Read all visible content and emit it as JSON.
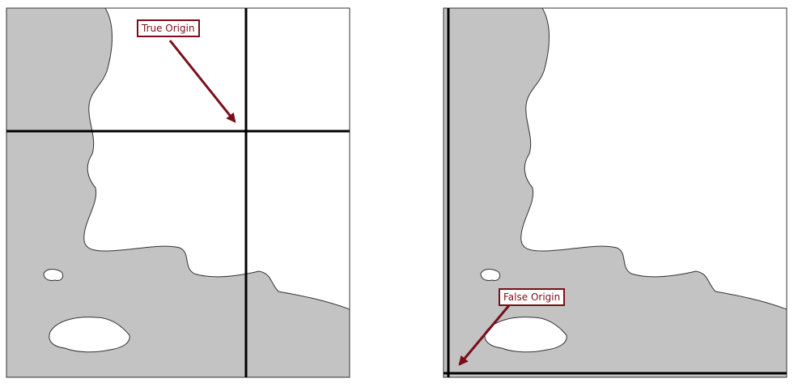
{
  "diagram": {
    "left_panel": {
      "callout_text": "True Origin"
    },
    "right_panel": {
      "callout_text": "False Origin"
    },
    "colors": {
      "land": "#c3c3c3",
      "water": "#ffffff",
      "frame": "#333333",
      "axis": "#000000",
      "callout": "#7a0e1a"
    }
  }
}
